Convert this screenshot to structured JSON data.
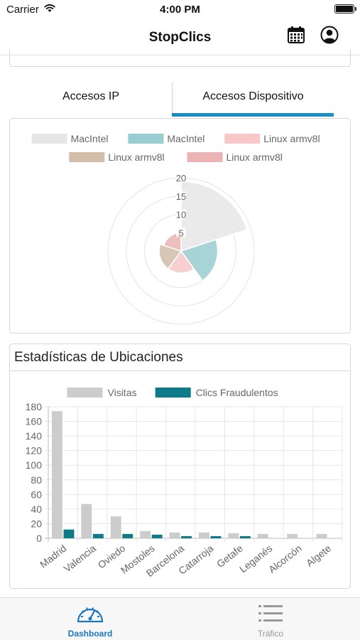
{
  "status_bar": {
    "carrier": "Carrier",
    "time": "4:00 PM",
    "battery_level": 1.0
  },
  "header": {
    "title": "StopClics"
  },
  "tabs": [
    {
      "label": "Accesos IP",
      "active": false
    },
    {
      "label": "Accesos Dispositivo",
      "active": true
    }
  ],
  "accent_color": "#1a8cc7",
  "polar_chart": {
    "chart_data": {
      "type": "polarArea",
      "legend": [
        {
          "label": "MacIntel",
          "color": "#e6e6e6"
        },
        {
          "label": "MacIntel",
          "color": "#99cdd1"
        },
        {
          "label": "Linux armv8l",
          "color": "#f8c8c8"
        },
        {
          "label": "Linux armv8l",
          "color": "#d2bda9"
        },
        {
          "label": "Linux armv8l",
          "color": "#ebb3b3"
        }
      ],
      "values": [
        19,
        10,
        6,
        6,
        5
      ],
      "r_max": 20,
      "r_ticks": [
        "5",
        "10",
        "15",
        "20"
      ]
    }
  },
  "bar_chart": {
    "title": "Estadísticas de Ubicaciones",
    "chart_data": {
      "type": "bar",
      "categories": [
        "Madrid",
        "Valencia",
        "Oviedo",
        "Mostoles",
        "Barcelona",
        "Catarroja",
        "Getafe",
        "Leganés",
        "Alcorcón",
        "Algete"
      ],
      "series": [
        {
          "name": "Visitas",
          "color": "#cccccc",
          "values": [
            174,
            47,
            30,
            10,
            8,
            8,
            7,
            6,
            6,
            6
          ]
        },
        {
          "name": "Clics Fraudulentos",
          "color": "#0e7b88",
          "values": [
            12,
            6,
            6,
            5,
            3,
            3,
            3,
            0,
            0,
            0
          ]
        }
      ],
      "ylim": [
        0,
        180
      ],
      "y_ticks": [
        "0",
        "20",
        "40",
        "60",
        "80",
        "100",
        "120",
        "140",
        "160",
        "180"
      ],
      "legend_position": "top",
      "grid": true
    }
  },
  "tab_bar": {
    "items": [
      {
        "label": "Dashboard",
        "icon": "speedometer-icon",
        "active": true
      },
      {
        "label": "Tráfico",
        "icon": "list-icon",
        "active": false
      }
    ],
    "active_color": "#1a78c2",
    "inactive_color": "#999999"
  }
}
